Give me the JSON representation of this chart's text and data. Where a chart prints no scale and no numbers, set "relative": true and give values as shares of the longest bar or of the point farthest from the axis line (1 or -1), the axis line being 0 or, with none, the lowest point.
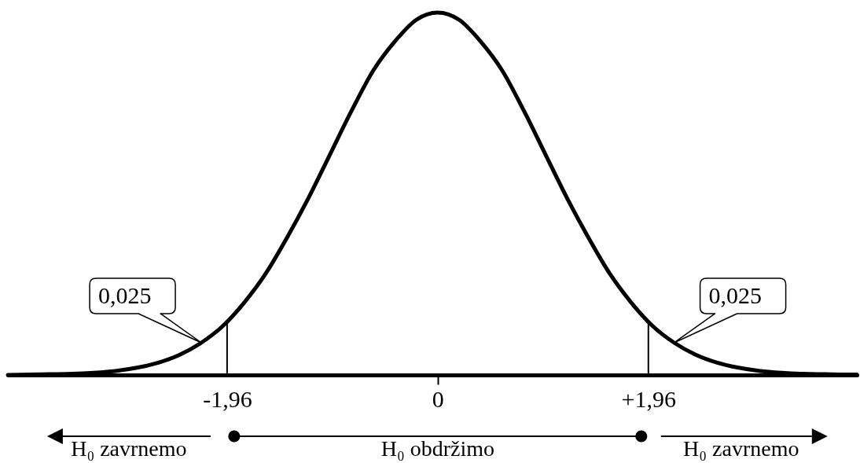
{
  "chart_data": {
    "type": "line",
    "relative": true,
    "x": [
      -4.0,
      -3.8,
      -3.6,
      -3.4,
      -3.2,
      -3.0,
      -2.8,
      -2.6,
      -2.4,
      -2.2,
      -2.0,
      -1.8,
      -1.6,
      -1.4,
      -1.2,
      -1.0,
      -0.8,
      -0.6,
      -0.4,
      -0.2,
      0,
      0.2,
      0.4,
      0.6,
      0.8,
      1.0,
      1.2,
      1.4,
      1.6,
      1.8,
      2.0,
      2.2,
      2.4,
      2.6,
      2.8,
      3.0,
      3.2,
      3.4,
      3.6,
      3.8,
      3.9
    ],
    "series": [
      {
        "color": "#000000",
        "values": [
          0.0,
          0.001,
          0.002,
          0.003,
          0.006,
          0.011,
          0.02,
          0.034,
          0.056,
          0.089,
          0.135,
          0.2,
          0.28,
          0.38,
          0.49,
          0.61,
          0.73,
          0.84,
          0.92,
          0.98,
          1.0,
          0.98,
          0.92,
          0.84,
          0.73,
          0.61,
          0.49,
          0.38,
          0.28,
          0.2,
          0.135,
          0.089,
          0.056,
          0.034,
          0.02,
          0.011,
          0.006,
          0.003,
          0.002,
          0.001,
          0.001
        ]
      }
    ],
    "xlim": [
      -4,
      3.9
    ],
    "xticks": [
      {
        "value": -1.96,
        "label": "-1,96"
      },
      0,
      {
        "value": 1.96,
        "label": "+1,96"
      }
    ],
    "ref_lines": [
      {
        "axis": "x",
        "value": -1.96
      },
      {
        "axis": "x",
        "value": 1.96
      }
    ],
    "annotations": [
      {
        "text": "0,025",
        "x": -2.2,
        "y": 0.089
      },
      {
        "text": "0,025",
        "x": 2.2,
        "y": 0.089
      },
      "H₀ zavrnemo",
      "H₀ obdržimo",
      "H₀ zavrnemo"
    ]
  }
}
